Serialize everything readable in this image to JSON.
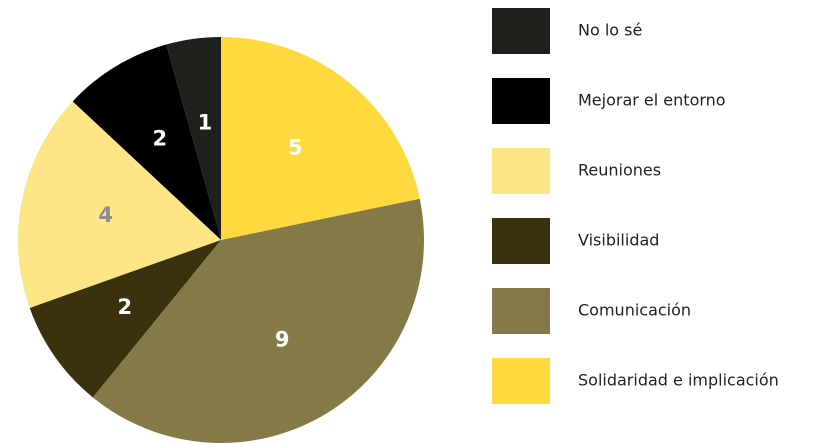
{
  "chart_data": {
    "type": "pie",
    "categories": [
      "No lo sé",
      "Mejorar el entorno",
      "Reuniones",
      "Visibilidad",
      "Comunicación",
      "Solidaridad e implicación"
    ],
    "values": [
      1,
      2,
      4,
      2,
      9,
      5
    ],
    "colors": [
      "#1f1f1b",
      "#000000",
      "#fee687",
      "#3a310e",
      "#847a48",
      "#ffd93d"
    ],
    "label_colors": [
      "#ffffff",
      "#ffffff",
      "#8c8c8c",
      "#ffffff",
      "#ffffff",
      "#ffffff"
    ],
    "direction": "counterclockwise",
    "legend": "right"
  }
}
